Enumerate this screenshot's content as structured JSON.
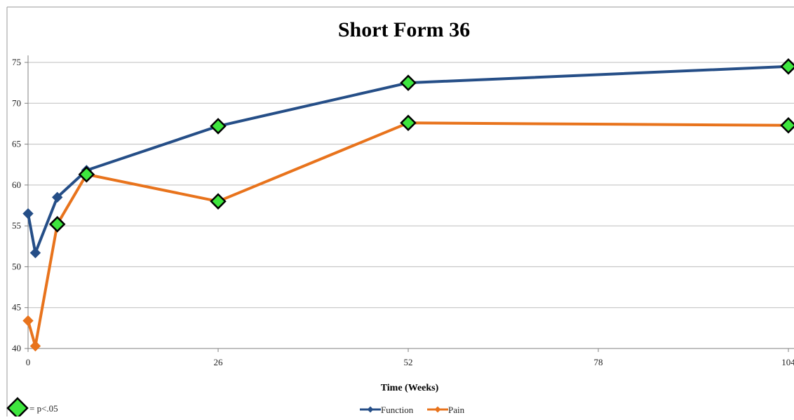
{
  "chart_data": {
    "type": "line",
    "title": "Short Form 36",
    "xlabel": "Time (Weeks)",
    "ylabel": "",
    "xlim": [
      0,
      104
    ],
    "ylim": [
      40,
      75
    ],
    "xticks": [
      0,
      26,
      52,
      78,
      104
    ],
    "xtick_labels": [
      "0",
      "26",
      "52",
      "78",
      "104"
    ],
    "yticks": [
      40,
      45,
      50,
      55,
      60,
      65,
      70,
      75
    ],
    "ytick_labels": [
      "40",
      "45",
      "50",
      "55",
      "60",
      "65",
      "70",
      "75"
    ],
    "grid": "horizontal",
    "legend_position": "bottom",
    "significance_note": "= p<.05",
    "colors": {
      "Function": "#254e87",
      "Pain": "#e8731c",
      "significance_marker": "#3ee63e"
    },
    "series": [
      {
        "name": "Function",
        "color": "#254e87",
        "x": [
          0,
          1,
          4,
          8,
          26,
          52,
          104
        ],
        "y": [
          56.5,
          51.7,
          58.5,
          61.8,
          67.2,
          72.5,
          74.5
        ],
        "significant": [
          false,
          false,
          false,
          false,
          true,
          true,
          true
        ]
      },
      {
        "name": "Pain",
        "color": "#e8731c",
        "x": [
          0,
          1,
          4,
          8,
          26,
          52,
          104
        ],
        "y": [
          43.4,
          40.3,
          55.2,
          61.3,
          58.0,
          67.6,
          67.3
        ],
        "significant": [
          false,
          false,
          true,
          true,
          true,
          true,
          true
        ]
      }
    ]
  }
}
